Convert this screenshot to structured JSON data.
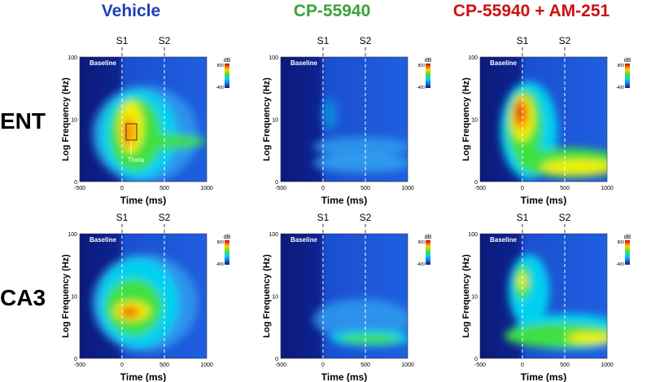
{
  "columns": [
    {
      "title": "Vehicle",
      "color": "#1f3fbf"
    },
    {
      "title": "CP-55940",
      "color": "#3aa33a"
    },
    {
      "title": "CP-55940 + AM-251",
      "color": "#cc1111"
    }
  ],
  "rows": [
    {
      "label": "ENT"
    },
    {
      "label": "CA3"
    }
  ],
  "axes": {
    "x_label": "Time (ms)",
    "y_label": "Log Frequency (Hz)",
    "xticks": [
      -500,
      0,
      500,
      1000
    ],
    "yticks": [
      100,
      10,
      0
    ],
    "markers": [
      "S1",
      "S2"
    ]
  },
  "panel": {
    "baseline": "Baseline",
    "colorbar": {
      "unit": "dB",
      "max": 800,
      "min": -400
    }
  },
  "annotation": "Theta"
}
